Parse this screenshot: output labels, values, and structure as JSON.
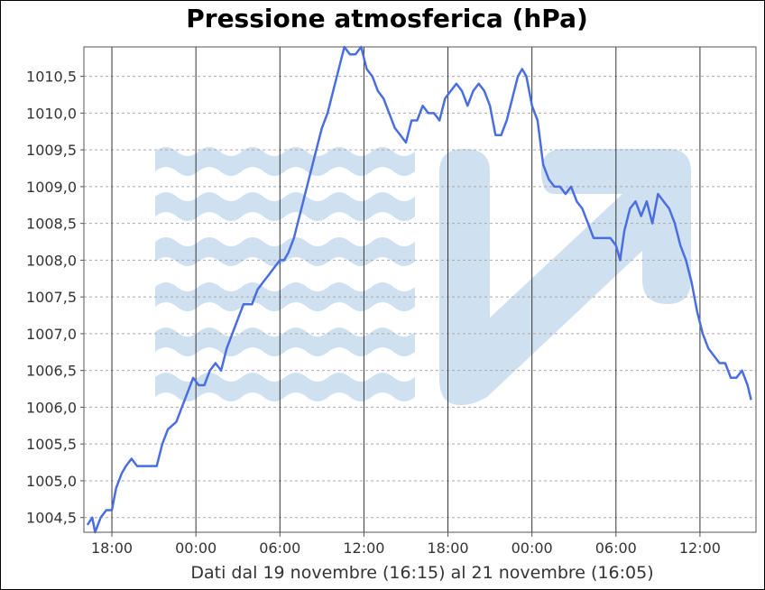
{
  "chart_data": {
    "type": "line",
    "title": "Pressione atmosferica (hPa)",
    "xlabel": "Dati dal 19 novembre (16:15) al 21 novembre (16:05)",
    "ylabel": "",
    "x_unit": "hours since 19 novembre 16:00",
    "xlim": [
      0,
      48
    ],
    "ylim": [
      1004.3,
      1010.9
    ],
    "grid": true,
    "yticks": [
      "1004,5",
      "1005,0",
      "1005,5",
      "1006,0",
      "1006,5",
      "1007,0",
      "1007,5",
      "1008,0",
      "1008,5",
      "1009,0",
      "1009,5",
      "1010,0",
      "1010,5"
    ],
    "ytick_values": [
      1004.5,
      1005.0,
      1005.5,
      1006.0,
      1006.5,
      1007.0,
      1007.5,
      1008.0,
      1008.5,
      1009.0,
      1009.5,
      1010.0,
      1010.5
    ],
    "xticks": [
      "18:00",
      "00:00",
      "06:00",
      "12:00",
      "18:00",
      "00:00",
      "06:00",
      "12:00"
    ],
    "xtick_values": [
      2,
      8,
      14,
      20,
      26,
      32,
      38,
      44
    ],
    "series": [
      {
        "color": "#4a6ee0",
        "points": [
          [
            0.25,
            1004.4
          ],
          [
            0.6,
            1004.5
          ],
          [
            0.8,
            1004.3
          ],
          [
            1.2,
            1004.5
          ],
          [
            1.6,
            1004.6
          ],
          [
            2.0,
            1004.6
          ],
          [
            2.3,
            1004.9
          ],
          [
            2.7,
            1005.1
          ],
          [
            3.0,
            1005.2
          ],
          [
            3.4,
            1005.3
          ],
          [
            3.8,
            1005.2
          ],
          [
            4.5,
            1005.2
          ],
          [
            5.2,
            1005.2
          ],
          [
            5.6,
            1005.5
          ],
          [
            6.0,
            1005.7
          ],
          [
            6.6,
            1005.8
          ],
          [
            7.0,
            1006.0
          ],
          [
            7.4,
            1006.2
          ],
          [
            7.8,
            1006.4
          ],
          [
            8.2,
            1006.3
          ],
          [
            8.6,
            1006.3
          ],
          [
            9.0,
            1006.5
          ],
          [
            9.4,
            1006.6
          ],
          [
            9.8,
            1006.5
          ],
          [
            10.2,
            1006.8
          ],
          [
            10.6,
            1007.0
          ],
          [
            11.0,
            1007.2
          ],
          [
            11.4,
            1007.4
          ],
          [
            12.0,
            1007.4
          ],
          [
            12.4,
            1007.6
          ],
          [
            12.8,
            1007.7
          ],
          [
            13.2,
            1007.8
          ],
          [
            13.6,
            1007.9
          ],
          [
            14.0,
            1008.0
          ],
          [
            14.3,
            1008.0
          ],
          [
            14.6,
            1008.1
          ],
          [
            15.0,
            1008.3
          ],
          [
            15.4,
            1008.6
          ],
          [
            15.8,
            1008.9
          ],
          [
            16.2,
            1009.2
          ],
          [
            16.6,
            1009.5
          ],
          [
            17.0,
            1009.8
          ],
          [
            17.4,
            1010.0
          ],
          [
            17.8,
            1010.3
          ],
          [
            18.2,
            1010.6
          ],
          [
            18.6,
            1010.9
          ],
          [
            19.0,
            1010.8
          ],
          [
            19.4,
            1010.8
          ],
          [
            19.8,
            1010.9
          ],
          [
            20.2,
            1010.6
          ],
          [
            20.6,
            1010.5
          ],
          [
            21.0,
            1010.3
          ],
          [
            21.4,
            1010.2
          ],
          [
            21.8,
            1010.0
          ],
          [
            22.2,
            1009.8
          ],
          [
            22.6,
            1009.7
          ],
          [
            23.0,
            1009.6
          ],
          [
            23.4,
            1009.9
          ],
          [
            23.8,
            1009.9
          ],
          [
            24.2,
            1010.1
          ],
          [
            24.6,
            1010.0
          ],
          [
            25.0,
            1010.0
          ],
          [
            25.4,
            1009.9
          ],
          [
            25.8,
            1010.2
          ],
          [
            26.2,
            1010.3
          ],
          [
            26.6,
            1010.4
          ],
          [
            27.0,
            1010.3
          ],
          [
            27.4,
            1010.1
          ],
          [
            27.8,
            1010.3
          ],
          [
            28.2,
            1010.4
          ],
          [
            28.6,
            1010.3
          ],
          [
            29.0,
            1010.1
          ],
          [
            29.4,
            1009.7
          ],
          [
            29.8,
            1009.7
          ],
          [
            30.2,
            1009.9
          ],
          [
            30.6,
            1010.2
          ],
          [
            31.0,
            1010.5
          ],
          [
            31.3,
            1010.6
          ],
          [
            31.6,
            1010.5
          ],
          [
            32.0,
            1010.1
          ],
          [
            32.4,
            1009.9
          ],
          [
            32.8,
            1009.3
          ],
          [
            33.2,
            1009.1
          ],
          [
            33.6,
            1009.0
          ],
          [
            34.0,
            1009.0
          ],
          [
            34.4,
            1008.9
          ],
          [
            34.8,
            1009.0
          ],
          [
            35.2,
            1008.8
          ],
          [
            35.6,
            1008.7
          ],
          [
            36.0,
            1008.5
          ],
          [
            36.4,
            1008.3
          ],
          [
            37.0,
            1008.3
          ],
          [
            37.6,
            1008.3
          ],
          [
            38.0,
            1008.2
          ],
          [
            38.3,
            1008.0
          ],
          [
            38.6,
            1008.4
          ],
          [
            39.0,
            1008.7
          ],
          [
            39.4,
            1008.8
          ],
          [
            39.8,
            1008.6
          ],
          [
            40.2,
            1008.8
          ],
          [
            40.6,
            1008.5
          ],
          [
            41.0,
            1008.9
          ],
          [
            41.4,
            1008.8
          ],
          [
            41.8,
            1008.7
          ],
          [
            42.2,
            1008.5
          ],
          [
            42.6,
            1008.2
          ],
          [
            43.0,
            1008.0
          ],
          [
            43.4,
            1007.7
          ],
          [
            43.8,
            1007.3
          ],
          [
            44.2,
            1007.0
          ],
          [
            44.6,
            1006.8
          ],
          [
            45.0,
            1006.7
          ],
          [
            45.4,
            1006.6
          ],
          [
            45.8,
            1006.6
          ],
          [
            46.2,
            1006.4
          ],
          [
            46.6,
            1006.4
          ],
          [
            47.0,
            1006.5
          ],
          [
            47.4,
            1006.3
          ],
          [
            47.65,
            1006.1
          ]
        ]
      }
    ]
  },
  "watermark": {
    "shape": "logo",
    "color": "#cfe0f0"
  }
}
